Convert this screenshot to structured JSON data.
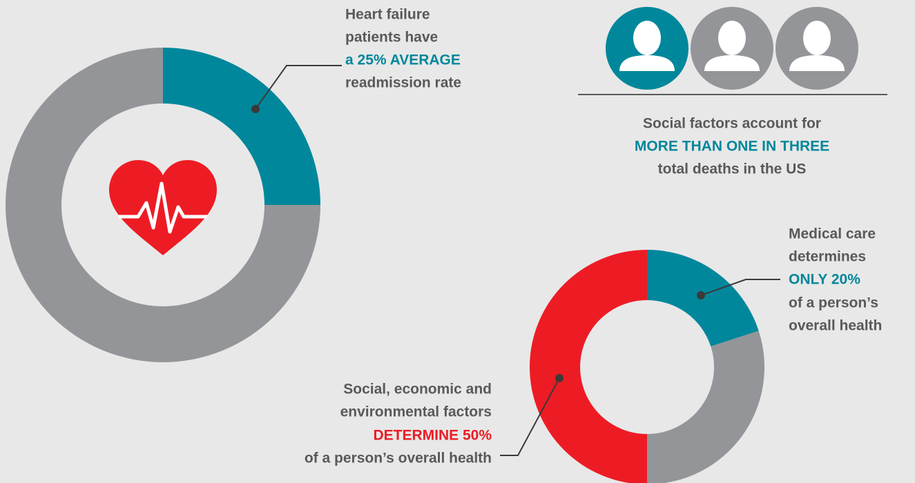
{
  "chart_data": [
    {
      "type": "donut",
      "values": [
        25,
        75
      ],
      "colors": [
        "#00879b",
        "#939598"
      ],
      "annotation": [
        "Heart failure",
        "patients have",
        "a 25% AVERAGE",
        "readmission rate"
      ]
    },
    {
      "type": "donut",
      "values": [
        20,
        30,
        50
      ],
      "colors": [
        "#00879b",
        "#939598",
        "#ed1c24"
      ],
      "annotations": [
        [
          "Medical care",
          "determines",
          "ONLY 20%",
          "of a person’s",
          "overall health"
        ],
        [
          "Social, economic and",
          "environmental factors",
          "DETERMINE 50%",
          "of a person’s overall health"
        ]
      ]
    }
  ],
  "callout": [
    "Social factors account for",
    "MORE THAN ONE IN THREE",
    "total deaths in the US"
  ]
}
